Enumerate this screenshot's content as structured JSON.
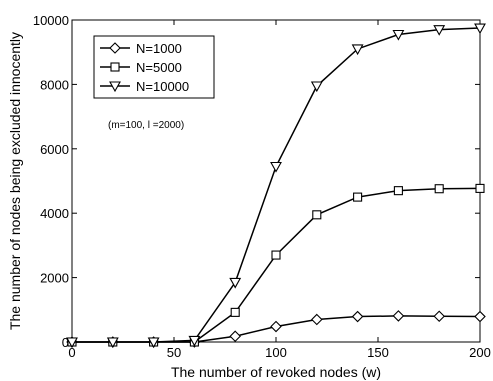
{
  "chart_data": {
    "type": "line",
    "xlabel": "The number of revoked nodes (w)",
    "ylabel": "The number of nodes being excluded innocently",
    "xlim": [
      0,
      200
    ],
    "ylim": [
      0,
      10000
    ],
    "xticks": [
      0,
      50,
      100,
      150,
      200
    ],
    "yticks": [
      0,
      2000,
      4000,
      6000,
      8000,
      10000
    ],
    "annotation": "(m=100, l =2000)",
    "legend_position": "top-left",
    "grid": false,
    "x": [
      0,
      20,
      40,
      60,
      80,
      100,
      120,
      140,
      160,
      180,
      200
    ],
    "series": [
      {
        "name": "N=1000",
        "marker": "diamond",
        "values": [
          0,
          0,
          0,
          0,
          180,
          480,
          700,
          790,
          810,
          800,
          790
        ]
      },
      {
        "name": "N=5000",
        "marker": "square",
        "values": [
          0,
          0,
          0,
          0,
          920,
          2700,
          3950,
          4500,
          4700,
          4760,
          4770
        ]
      },
      {
        "name": "N=10000",
        "marker": "triangle-down",
        "values": [
          0,
          0,
          0,
          50,
          1850,
          5450,
          7950,
          9100,
          9550,
          9700,
          9750
        ]
      }
    ]
  }
}
